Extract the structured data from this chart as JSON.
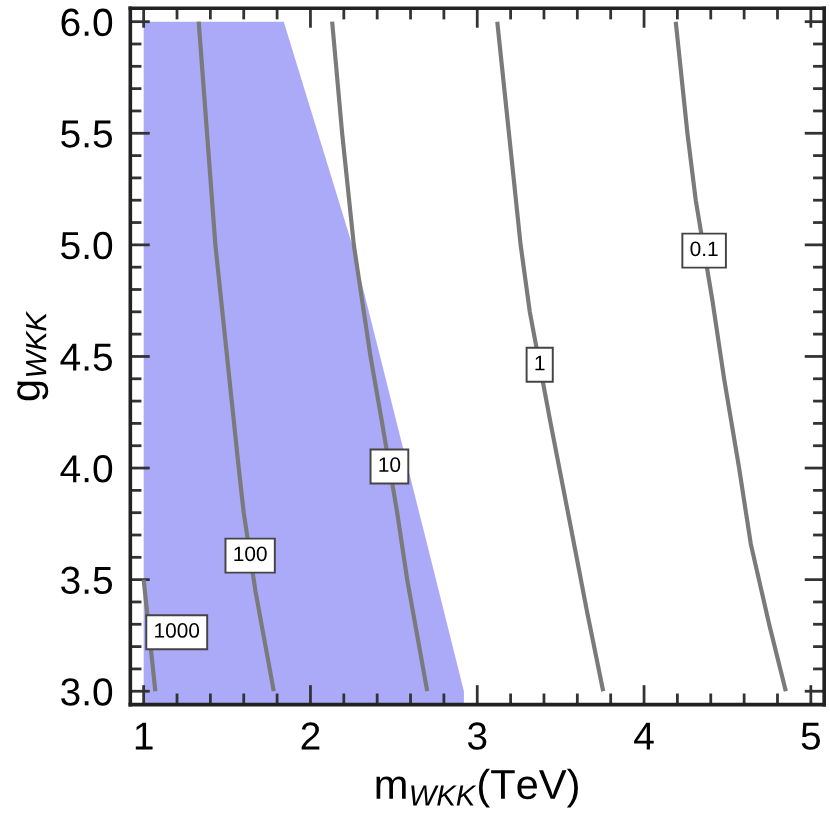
{
  "chart_data": {
    "type": "line",
    "xlabel": "m$_{WKK}$(TeV)",
    "ylabel": "g$_{WKK}$",
    "xlim": [
      0.92,
      5.08
    ],
    "ylim": [
      2.94,
      6.06
    ],
    "xticks": [
      1,
      {
        "value": 1.2,
        "label": null
      },
      {
        "value": 1.4,
        "label": null
      },
      {
        "value": 1.6,
        "label": null
      },
      {
        "value": 1.8,
        "label": null
      },
      2,
      {
        "value": 2.2,
        "label": null
      },
      {
        "value": 2.4,
        "label": null
      },
      {
        "value": 2.6,
        "label": null
      },
      {
        "value": 2.8,
        "label": null
      },
      3,
      {
        "value": 3.2,
        "label": null
      },
      {
        "value": 3.4,
        "label": null
      },
      {
        "value": 3.6,
        "label": null
      },
      {
        "value": 3.8,
        "label": null
      },
      4,
      {
        "value": 4.2,
        "label": null
      },
      {
        "value": 4.4,
        "label": null
      },
      {
        "value": 4.6,
        "label": null
      },
      {
        "value": 4.8,
        "label": null
      },
      5
    ],
    "yticks": [
      {
        "value": 3,
        "label": "3.0"
      },
      {
        "value": 3.1,
        "label": null
      },
      {
        "value": 3.2,
        "label": null
      },
      {
        "value": 3.3,
        "label": null
      },
      {
        "value": 3.4,
        "label": null
      },
      3.5,
      {
        "value": 3.6,
        "label": null
      },
      {
        "value": 3.7,
        "label": null
      },
      {
        "value": 3.8,
        "label": null
      },
      {
        "value": 3.9,
        "label": null
      },
      {
        "value": 4,
        "label": "4.0"
      },
      {
        "value": 4.1,
        "label": null
      },
      {
        "value": 4.2,
        "label": null
      },
      {
        "value": 4.3,
        "label": null
      },
      {
        "value": 4.4,
        "label": null
      },
      4.5,
      {
        "value": 4.6,
        "label": null
      },
      {
        "value": 4.7,
        "label": null
      },
      {
        "value": 4.8,
        "label": null
      },
      {
        "value": 4.9,
        "label": null
      },
      {
        "value": 5,
        "label": "5.0"
      },
      {
        "value": 5.1,
        "label": null
      },
      {
        "value": 5.2,
        "label": null
      },
      {
        "value": 5.3,
        "label": null
      },
      {
        "value": 5.4,
        "label": null
      },
      5.5,
      {
        "value": 5.6,
        "label": null
      },
      {
        "value": 5.7,
        "label": null
      },
      {
        "value": 5.8,
        "label": null
      },
      {
        "value": 5.9,
        "label": null
      },
      {
        "value": 6,
        "label": "6.0"
      }
    ],
    "line_style": "solid",
    "series": [
      {
        "type": "area",
        "color": "#aaaaf8",
        "x": [
          1.0,
          1.84,
          2.25,
          2.92
        ],
        "values": [
          6.0,
          6.0,
          5.0,
          3.0
        ]
      },
      {
        "name": "1000",
        "color": "#7a7a7a",
        "x": [
          1.0,
          1.07
        ],
        "values": [
          3.5,
          3.0
        ]
      },
      {
        "name": "100",
        "color": "#7a7a7a",
        "x": [
          1.33,
          1.38,
          1.43,
          1.5,
          1.57,
          1.6,
          1.67,
          1.78
        ],
        "values": [
          6.0,
          5.5,
          5.0,
          4.5,
          4.0,
          3.8,
          3.45,
          3.0
        ]
      },
      {
        "name": "10",
        "color": "#7a7a7a",
        "x": [
          2.13,
          2.19,
          2.26,
          2.36,
          2.43,
          2.52,
          2.58,
          2.7
        ],
        "values": [
          6.0,
          5.5,
          5.0,
          4.5,
          4.2,
          3.8,
          3.5,
          3.0
        ]
      },
      {
        "name": "1",
        "color": "#7a7a7a",
        "x": [
          3.12,
          3.19,
          3.26,
          3.315,
          3.44,
          3.57,
          3.66,
          3.755
        ],
        "values": [
          6.0,
          5.5,
          5.0,
          4.7,
          4.2,
          3.7,
          3.35,
          3.0
        ]
      },
      {
        "name": "0.1",
        "color": "#7a7a7a",
        "x": [
          4.19,
          4.26,
          4.31,
          4.41,
          4.48,
          4.57,
          4.64,
          4.75,
          4.85
        ],
        "values": [
          6.0,
          5.5,
          5.2,
          4.75,
          4.4,
          4.0,
          3.66,
          3.3,
          3.0
        ]
      }
    ]
  }
}
